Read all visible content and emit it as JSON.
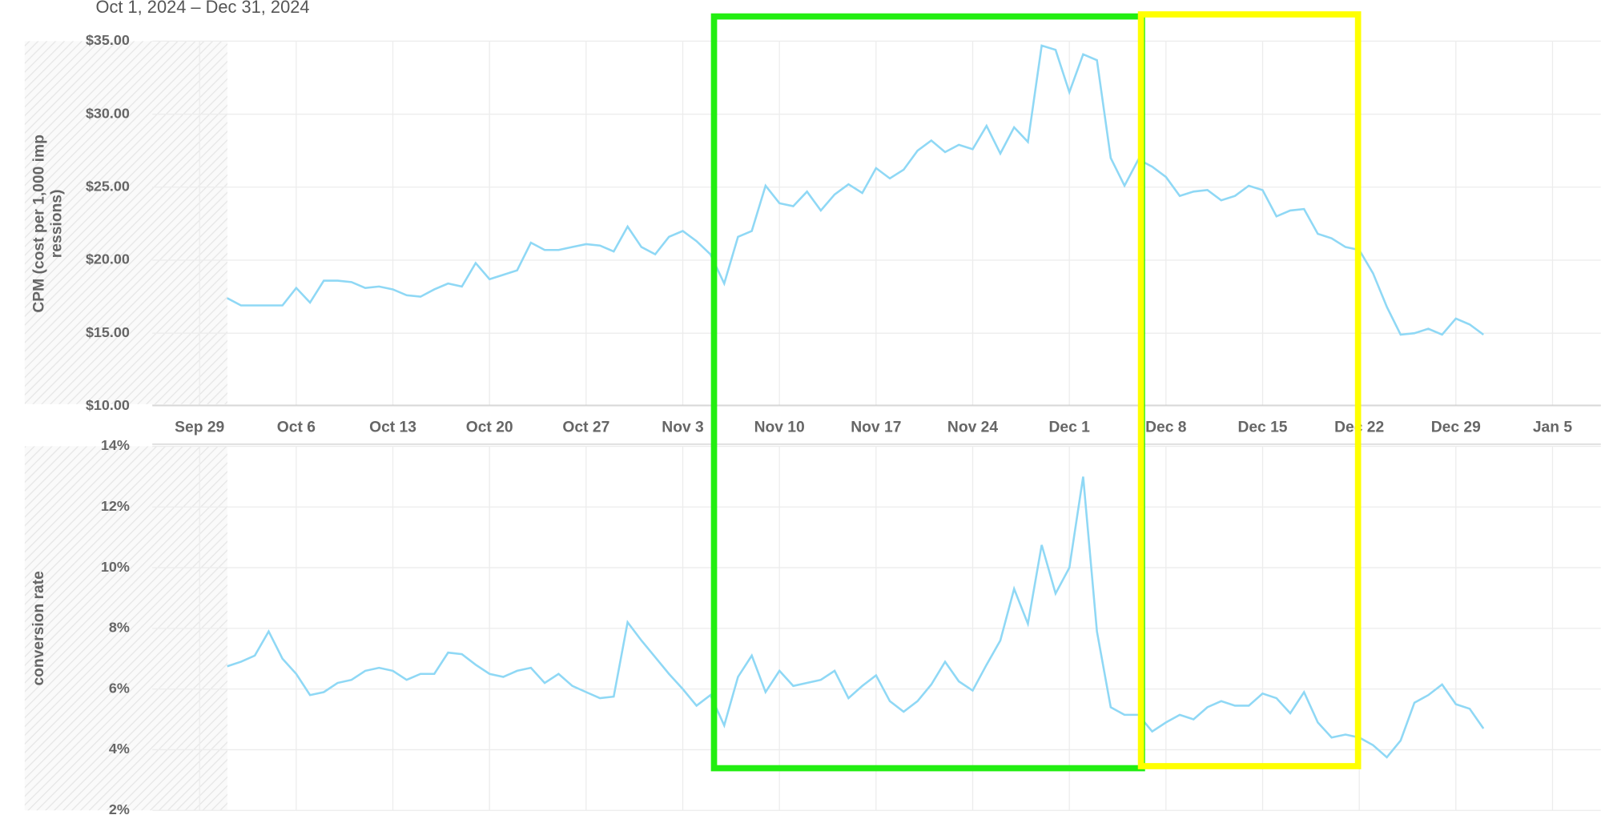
{
  "chart_data": [
    {
      "type": "line",
      "subtitle": "Oct 1, 2024 – Dec 31, 2024",
      "ylabel": [
        "CPM (cost per 1,000 imp",
        "ressions)"
      ],
      "color": "#8fd8f5",
      "x": [
        "2024-10-01",
        "2024-10-02",
        "2024-10-03",
        "2024-10-04",
        "2024-10-05",
        "2024-10-06",
        "2024-10-07",
        "2024-10-08",
        "2024-10-09",
        "2024-10-10",
        "2024-10-11",
        "2024-10-12",
        "2024-10-13",
        "2024-10-14",
        "2024-10-15",
        "2024-10-16",
        "2024-10-17",
        "2024-10-18",
        "2024-10-19",
        "2024-10-20",
        "2024-10-21",
        "2024-10-22",
        "2024-10-23",
        "2024-10-24",
        "2024-10-25",
        "2024-10-26",
        "2024-10-27",
        "2024-10-28",
        "2024-10-29",
        "2024-10-30",
        "2024-10-31",
        "2024-11-01",
        "2024-11-02",
        "2024-11-03",
        "2024-11-04",
        "2024-11-05",
        "2024-11-06",
        "2024-11-07",
        "2024-11-08",
        "2024-11-09",
        "2024-11-10",
        "2024-11-11",
        "2024-11-12",
        "2024-11-13",
        "2024-11-14",
        "2024-11-15",
        "2024-11-16",
        "2024-11-17",
        "2024-11-18",
        "2024-11-19",
        "2024-11-20",
        "2024-11-21",
        "2024-11-22",
        "2024-11-23",
        "2024-11-24",
        "2024-11-25",
        "2024-11-26",
        "2024-11-27",
        "2024-11-28",
        "2024-11-29",
        "2024-11-30",
        "2024-12-01",
        "2024-12-02",
        "2024-12-03",
        "2024-12-04",
        "2024-12-05",
        "2024-12-06",
        "2024-12-07",
        "2024-12-08",
        "2024-12-09",
        "2024-12-10",
        "2024-12-11",
        "2024-12-12",
        "2024-12-13",
        "2024-12-14",
        "2024-12-15",
        "2024-12-16",
        "2024-12-17",
        "2024-12-18",
        "2024-12-19",
        "2024-12-20",
        "2024-12-21",
        "2024-12-22",
        "2024-12-23",
        "2024-12-24",
        "2024-12-25",
        "2024-12-26",
        "2024-12-27",
        "2024-12-28",
        "2024-12-29",
        "2024-12-30",
        "2024-12-31"
      ],
      "values": [
        17.4,
        16.9,
        16.9,
        16.9,
        16.9,
        18.1,
        17.1,
        18.6,
        18.6,
        18.5,
        18.1,
        18.2,
        18.0,
        17.6,
        17.5,
        18.0,
        18.4,
        18.2,
        19.8,
        18.7,
        19.0,
        19.3,
        21.2,
        20.7,
        20.7,
        20.9,
        21.1,
        21.0,
        20.6,
        22.3,
        20.9,
        20.4,
        21.6,
        22.0,
        21.3,
        20.4,
        18.4,
        21.6,
        22.0,
        25.1,
        23.9,
        23.7,
        24.7,
        23.4,
        24.5,
        25.2,
        24.6,
        26.3,
        25.6,
        26.2,
        27.5,
        28.2,
        27.4,
        27.9,
        27.6,
        29.2,
        27.3,
        29.1,
        28.1,
        34.7,
        34.4,
        31.5,
        34.1,
        33.7,
        27.0,
        25.1,
        26.9,
        26.4,
        25.7,
        24.4,
        24.7,
        24.8,
        24.1,
        24.4,
        25.1,
        24.8,
        23.0,
        23.4,
        23.5,
        21.8,
        21.5,
        20.9,
        20.7,
        19.1,
        16.8,
        14.9,
        15.0,
        15.3,
        14.9,
        16.0,
        15.6,
        14.9
      ],
      "xlim": [
        "2024-09-26",
        "2025-01-08"
      ],
      "xticks": [
        {
          "value": "2024-09-29",
          "label": "Sep 29"
        },
        {
          "value": "2024-10-06",
          "label": "Oct 6"
        },
        {
          "value": "2024-10-13",
          "label": "Oct 13"
        },
        {
          "value": "2024-10-20",
          "label": "Oct 20"
        },
        {
          "value": "2024-10-27",
          "label": "Oct 27"
        },
        {
          "value": "2024-11-03",
          "label": "Nov 3"
        },
        {
          "value": "2024-11-10",
          "label": "Nov 10"
        },
        {
          "value": "2024-11-17",
          "label": "Nov 17"
        },
        {
          "value": "2024-11-24",
          "label": "Nov 24"
        },
        {
          "value": "2024-12-01",
          "label": "Dec 1"
        },
        {
          "value": "2024-12-08",
          "label": "Dec 8"
        },
        {
          "value": "2024-12-15",
          "label": "Dec 15"
        },
        {
          "value": "2024-12-22",
          "label": "Dec 22"
        },
        {
          "value": "2024-12-29",
          "label": "Dec 29"
        },
        {
          "value": "2025-01-05",
          "label": "Jan 5"
        }
      ],
      "ylim": [
        10,
        35
      ],
      "yticks": [
        {
          "value": 10,
          "label": "$10.00"
        },
        {
          "value": 15,
          "label": "$15.00"
        },
        {
          "value": 20,
          "label": "$20.00"
        },
        {
          "value": 25,
          "label": "$25.00"
        },
        {
          "value": 30,
          "label": "$30.00"
        },
        {
          "value": 35,
          "label": "$35.00"
        }
      ],
      "grid": true
    },
    {
      "type": "line",
      "ylabel": [
        "conversion rate"
      ],
      "color": "#8fd8f5",
      "x": [
        "2024-10-01",
        "2024-10-02",
        "2024-10-03",
        "2024-10-04",
        "2024-10-05",
        "2024-10-06",
        "2024-10-07",
        "2024-10-08",
        "2024-10-09",
        "2024-10-10",
        "2024-10-11",
        "2024-10-12",
        "2024-10-13",
        "2024-10-14",
        "2024-10-15",
        "2024-10-16",
        "2024-10-17",
        "2024-10-18",
        "2024-10-19",
        "2024-10-20",
        "2024-10-21",
        "2024-10-22",
        "2024-10-23",
        "2024-10-24",
        "2024-10-25",
        "2024-10-26",
        "2024-10-27",
        "2024-10-28",
        "2024-10-29",
        "2024-10-30",
        "2024-10-31",
        "2024-11-01",
        "2024-11-02",
        "2024-11-03",
        "2024-11-04",
        "2024-11-05",
        "2024-11-06",
        "2024-11-07",
        "2024-11-08",
        "2024-11-09",
        "2024-11-10",
        "2024-11-11",
        "2024-11-12",
        "2024-11-13",
        "2024-11-14",
        "2024-11-15",
        "2024-11-16",
        "2024-11-17",
        "2024-11-18",
        "2024-11-19",
        "2024-11-20",
        "2024-11-21",
        "2024-11-22",
        "2024-11-23",
        "2024-11-24",
        "2024-11-25",
        "2024-11-26",
        "2024-11-27",
        "2024-11-28",
        "2024-11-29",
        "2024-11-30",
        "2024-12-01",
        "2024-12-02",
        "2024-12-03",
        "2024-12-04",
        "2024-12-05",
        "2024-12-06",
        "2024-12-07",
        "2024-12-08",
        "2024-12-09",
        "2024-12-10",
        "2024-12-11",
        "2024-12-12",
        "2024-12-13",
        "2024-12-14",
        "2024-12-15",
        "2024-12-16",
        "2024-12-17",
        "2024-12-18",
        "2024-12-19",
        "2024-12-20",
        "2024-12-21",
        "2024-12-22",
        "2024-12-23",
        "2024-12-24",
        "2024-12-25",
        "2024-12-26",
        "2024-12-27",
        "2024-12-28",
        "2024-12-29",
        "2024-12-30",
        "2024-12-31"
      ],
      "values": [
        6.75,
        6.9,
        7.1,
        7.9,
        7.0,
        6.5,
        5.8,
        5.9,
        6.2,
        6.3,
        6.6,
        6.7,
        6.6,
        6.3,
        6.5,
        6.5,
        7.2,
        7.15,
        6.8,
        6.5,
        6.4,
        6.6,
        6.7,
        6.2,
        6.5,
        6.1,
        5.9,
        5.7,
        5.75,
        8.2,
        7.6,
        7.05,
        6.5,
        6.0,
        5.45,
        5.8,
        4.8,
        6.4,
        7.1,
        5.9,
        6.6,
        6.1,
        6.2,
        6.3,
        6.6,
        5.7,
        6.1,
        6.45,
        5.6,
        5.25,
        5.6,
        6.15,
        6.9,
        6.25,
        5.95,
        6.8,
        7.6,
        9.3,
        8.15,
        10.75,
        9.15,
        10.0,
        13.0,
        7.9,
        5.4,
        5.15,
        5.15,
        4.6,
        4.9,
        5.15,
        5.0,
        5.4,
        5.6,
        5.45,
        5.45,
        5.85,
        5.7,
        5.2,
        5.9,
        4.9,
        4.4,
        4.5,
        4.4,
        4.15,
        3.75,
        4.3,
        5.55,
        5.8,
        6.15,
        5.5,
        5.35,
        4.7
      ],
      "xlim": [
        "2024-09-26",
        "2025-01-08"
      ],
      "ylim": [
        2,
        14
      ],
      "yticks": [
        {
          "value": 2,
          "label": "2%"
        },
        {
          "value": 4,
          "label": "4%"
        },
        {
          "value": 6,
          "label": "6%"
        },
        {
          "value": 8,
          "label": "8%"
        },
        {
          "value": 10,
          "label": "10%"
        },
        {
          "value": 12,
          "label": "12%"
        },
        {
          "value": 14,
          "label": "14%"
        }
      ],
      "grid": true
    }
  ]
}
